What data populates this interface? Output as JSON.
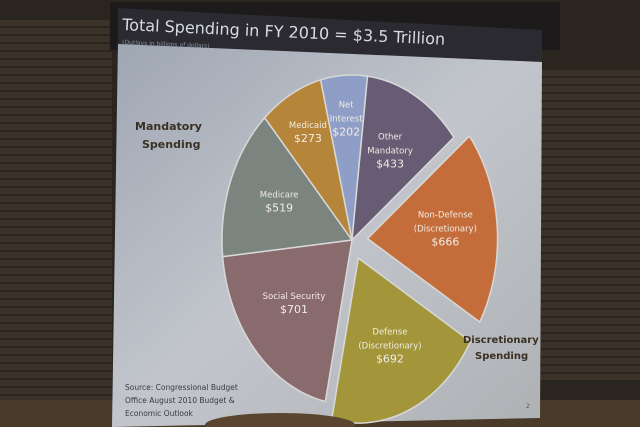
{
  "slide": {
    "title": "Total Spending in FY 2010 = $3.5 Trillion",
    "subtitle": "(Outlays in billions of dollars)",
    "mandatory_label": [
      "Mandatory",
      "Spending"
    ],
    "discretionary_label": [
      "Discretionary",
      "Spending"
    ],
    "source": [
      "Source: Congressional Budget",
      "Office August 2010 Budget &",
      "Economic Outlook"
    ],
    "page_number": "2"
  },
  "chart_data": {
    "type": "pie",
    "title": "Total Spending in FY 2010 = $3.5 Trillion",
    "subtitle": "(Outlays in billions of dollars)",
    "unit": "billions of dollars",
    "slices": [
      {
        "label": [
          "Net",
          "Interest"
        ],
        "value": 202,
        "display": "$202",
        "color": "#8e9ec6",
        "exploded": false
      },
      {
        "label": [
          "Other",
          "Mandatory"
        ],
        "value": 433,
        "display": "$433",
        "color": "#675c74",
        "exploded": false
      },
      {
        "label": [
          "Non-Defense",
          "(Discretionary)"
        ],
        "value": 666,
        "display": "$666",
        "color": "#c46d3a",
        "exploded": true
      },
      {
        "label": [
          "Defense",
          "(Discretionary)"
        ],
        "value": 692,
        "display": "$692",
        "color": "#a3963a",
        "exploded": true
      },
      {
        "label": [
          "Social Security"
        ],
        "value": 701,
        "display": "$701",
        "color": "#8a6b6d",
        "exploded": false
      },
      {
        "label": [
          "Medicare"
        ],
        "value": 519,
        "display": "$519",
        "color": "#7b847e",
        "exploded": false
      },
      {
        "label": [
          "Medicaid"
        ],
        "value": 273,
        "display": "$273",
        "color": "#b5863a",
        "exploded": false
      }
    ]
  }
}
